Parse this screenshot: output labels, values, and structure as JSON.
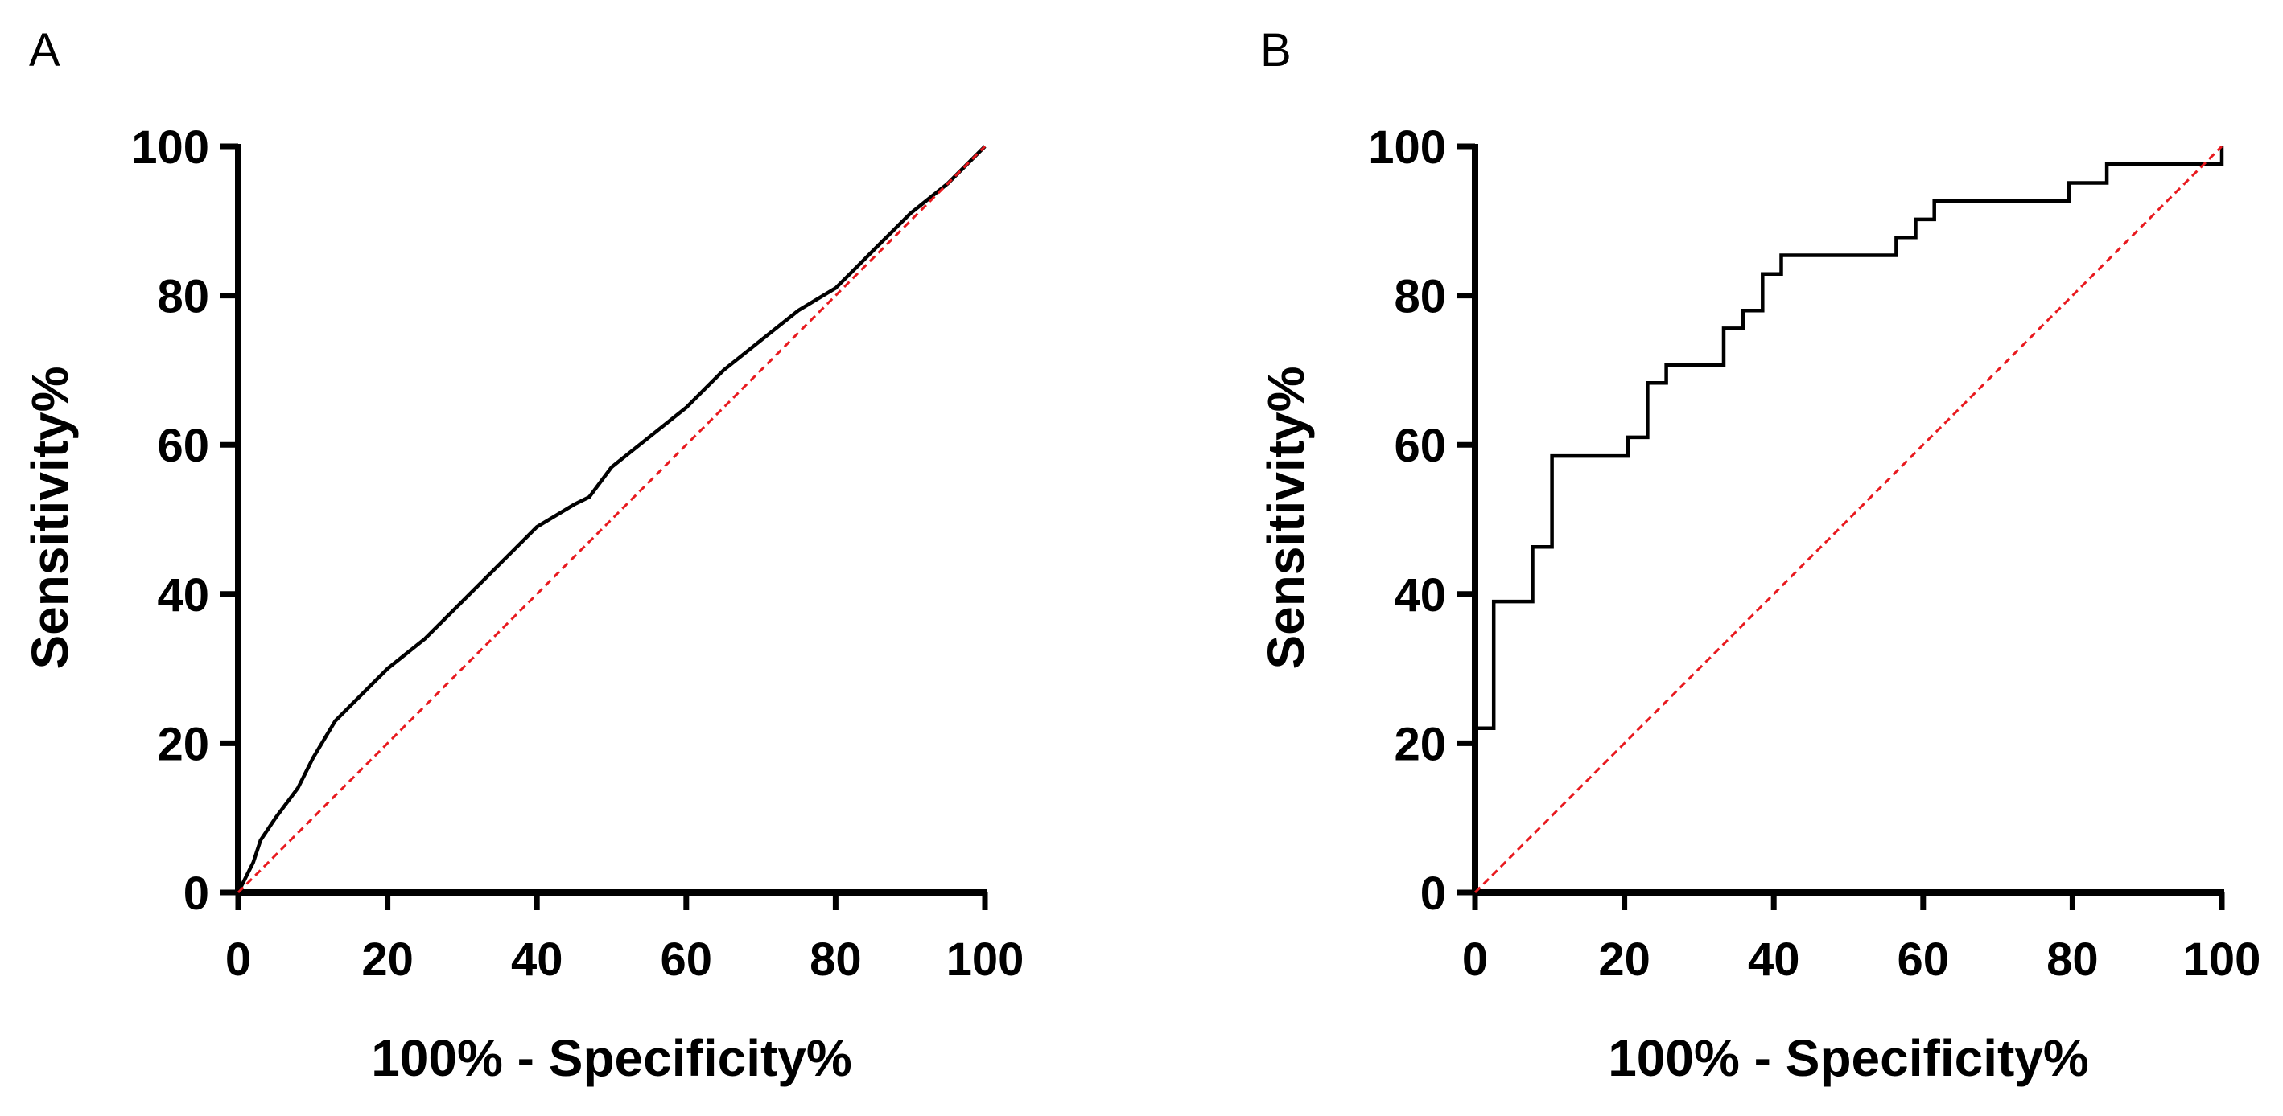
{
  "colors": {
    "curve": "#000000",
    "reference": "#e8191e",
    "axis": "#000000"
  },
  "chart_data": [
    {
      "type": "line",
      "panel": "A",
      "xlabel": "100% - Specificity%",
      "ylabel": "Sensitivity%",
      "xlim": [
        0,
        100
      ],
      "ylim": [
        0,
        100
      ],
      "xticks": [
        "0",
        "20",
        "40",
        "60",
        "80",
        "100"
      ],
      "yticks": [
        "0",
        "20",
        "40",
        "60",
        "80",
        "100"
      ],
      "grid": false,
      "series": [
        {
          "name": "ROC curve",
          "x": [
            0,
            1,
            2,
            3,
            5,
            8,
            10,
            13,
            15,
            20,
            25,
            30,
            35,
            40,
            45,
            47,
            50,
            55,
            60,
            65,
            70,
            75,
            80,
            82,
            85,
            90,
            95,
            100
          ],
          "y": [
            0,
            2,
            4,
            7,
            10,
            14,
            18,
            23,
            25,
            30,
            34,
            39,
            44,
            49,
            52,
            53,
            57,
            61,
            65,
            70,
            74,
            78,
            81,
            83,
            86,
            91,
            95,
            100
          ]
        },
        {
          "name": "Reference line",
          "style": "dashed",
          "x": [
            0,
            100
          ],
          "y": [
            0,
            100
          ]
        }
      ]
    },
    {
      "type": "line",
      "panel": "B",
      "xlabel": "100% - Specificity%",
      "ylabel": "Sensitivity%",
      "xlim": [
        0,
        100
      ],
      "ylim": [
        0,
        100
      ],
      "xticks": [
        "0",
        "20",
        "40",
        "60",
        "80",
        "100"
      ],
      "yticks": [
        "0",
        "20",
        "40",
        "60",
        "80",
        "100"
      ],
      "grid": false,
      "series": [
        {
          "name": "ROC curve",
          "step": true,
          "x": [
            0,
            0,
            2.5,
            2.5,
            7.7,
            7.7,
            10.3,
            10.3,
            20.5,
            20.5,
            23.1,
            23.1,
            25.6,
            25.6,
            33.3,
            33.3,
            35.9,
            35.9,
            38.5,
            38.5,
            41.0,
            41.0,
            56.4,
            56.4,
            59.0,
            59.0,
            61.5,
            61.5,
            79.5,
            79.5,
            84.6,
            84.6,
            100,
            100
          ],
          "y": [
            0,
            22.0,
            22.0,
            39.0,
            39.0,
            46.3,
            46.3,
            58.5,
            58.5,
            61.0,
            61.0,
            68.3,
            68.3,
            70.7,
            70.7,
            75.6,
            75.6,
            78.0,
            78.0,
            82.9,
            82.9,
            85.4,
            85.4,
            87.8,
            87.8,
            90.2,
            90.2,
            92.7,
            92.7,
            95.1,
            95.1,
            97.6,
            97.6,
            100
          ]
        },
        {
          "name": "Reference line",
          "style": "dashed",
          "x": [
            0,
            100
          ],
          "y": [
            0,
            100
          ]
        }
      ]
    }
  ]
}
